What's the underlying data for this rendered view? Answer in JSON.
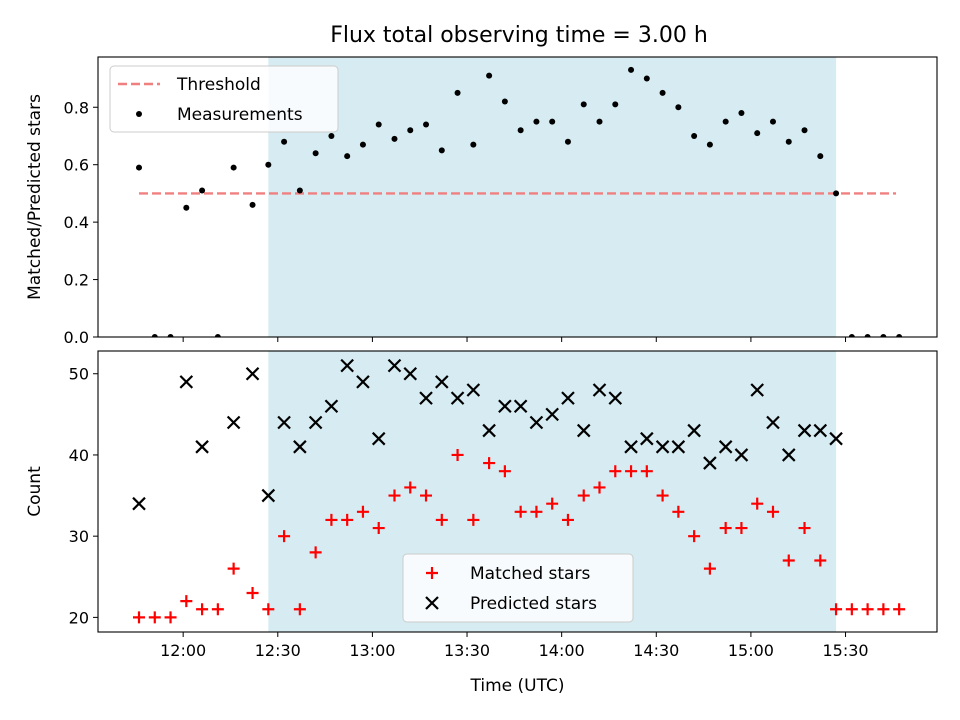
{
  "figure": {
    "title": "Flux total observing time = 3.00 h"
  },
  "colors": {
    "threshold": "#f08080",
    "measurements": "#000000",
    "matched": "#ff0000",
    "predicted": "#000000",
    "observing_window": "#add8e6"
  },
  "chart_data": [
    {
      "type": "scatter",
      "panel": "top",
      "title": "Flux total observing time = 3.00 h",
      "xlabel": "",
      "ylabel": "Matched/Predicted stars",
      "ylim": [
        0,
        0.975
      ],
      "xlim": [
        "11:33",
        "15:59"
      ],
      "yticks": [
        "0.0",
        "0.2",
        "0.4",
        "0.6",
        "0.8"
      ],
      "legend_position": "top-left",
      "shaded_region": {
        "start": "12:27",
        "end": "15:27"
      },
      "threshold": {
        "name": "Threshold",
        "value": 0.5,
        "x": [
          "11:46",
          "15:46"
        ]
      },
      "series": [
        {
          "name": "Measurements",
          "x": [
            "11:46",
            "11:51",
            "11:56",
            "12:01",
            "12:06",
            "12:11",
            "12:16",
            "12:22",
            "12:27",
            "12:32",
            "12:37",
            "12:42",
            "12:47",
            "12:52",
            "12:57",
            "13:02",
            "13:07",
            "13:12",
            "13:17",
            "13:22",
            "13:27",
            "13:32",
            "13:37",
            "13:42",
            "13:47",
            "13:52",
            "13:57",
            "14:02",
            "14:07",
            "14:12",
            "14:17",
            "14:22",
            "14:27",
            "14:32",
            "14:37",
            "14:42",
            "14:47",
            "14:52",
            "14:57",
            "15:02",
            "15:07",
            "15:12",
            "15:17",
            "15:22",
            "15:27",
            "15:32",
            "15:37",
            "15:42",
            "15:47"
          ],
          "y": [
            0.59,
            0.0,
            0.0,
            0.45,
            0.51,
            0.0,
            0.59,
            0.46,
            0.6,
            0.68,
            0.51,
            0.64,
            0.7,
            0.63,
            0.67,
            0.74,
            0.69,
            0.72,
            0.74,
            0.65,
            0.85,
            0.67,
            0.91,
            0.82,
            0.72,
            0.75,
            0.75,
            0.68,
            0.81,
            0.75,
            0.81,
            0.93,
            0.9,
            0.85,
            0.8,
            0.7,
            0.67,
            0.75,
            0.78,
            0.71,
            0.75,
            0.68,
            0.72,
            0.63,
            0.5,
            0.0,
            0.0,
            0.0,
            0.0
          ]
        }
      ]
    },
    {
      "type": "scatter",
      "panel": "bottom",
      "xlabel": "Time (UTC)",
      "ylabel": "Count",
      "ylim": [
        18.2,
        52.8
      ],
      "xlim": [
        "11:33",
        "15:59"
      ],
      "yticks": [
        "20",
        "30",
        "40",
        "50"
      ],
      "xticks": [
        "12:00",
        "12:30",
        "13:00",
        "13:30",
        "14:00",
        "14:30",
        "15:00",
        "15:30"
      ],
      "legend_position": "bottom-center",
      "shaded_region": {
        "start": "12:27",
        "end": "15:27"
      },
      "series": [
        {
          "name": "Matched stars",
          "marker": "+",
          "x": [
            "11:46",
            "11:51",
            "11:56",
            "12:01",
            "12:06",
            "12:11",
            "12:16",
            "12:22",
            "12:27",
            "12:32",
            "12:37",
            "12:42",
            "12:47",
            "12:52",
            "12:57",
            "13:02",
            "13:07",
            "13:12",
            "13:17",
            "13:22",
            "13:27",
            "13:32",
            "13:37",
            "13:42",
            "13:47",
            "13:52",
            "13:57",
            "14:02",
            "14:07",
            "14:12",
            "14:17",
            "14:22",
            "14:27",
            "14:32",
            "14:37",
            "14:42",
            "14:47",
            "14:52",
            "14:57",
            "15:02",
            "15:07",
            "15:12",
            "15:17",
            "15:22",
            "15:27",
            "15:32",
            "15:37",
            "15:42",
            "15:47"
          ],
          "y": [
            20,
            20,
            20,
            22,
            21,
            21,
            26,
            23,
            21,
            30,
            21,
            28,
            32,
            32,
            33,
            31,
            35,
            36,
            35,
            32,
            40,
            32,
            39,
            38,
            33,
            33,
            34,
            32,
            35,
            36,
            38,
            38,
            38,
            35,
            33,
            30,
            26,
            31,
            31,
            34,
            33,
            27,
            31,
            27,
            21,
            21,
            21,
            21,
            21
          ]
        },
        {
          "name": "Predicted stars",
          "marker": "x",
          "x": [
            "11:46",
            "12:01",
            "12:06",
            "12:16",
            "12:22",
            "12:27",
            "12:32",
            "12:37",
            "12:42",
            "12:47",
            "12:52",
            "12:57",
            "13:02",
            "13:07",
            "13:12",
            "13:17",
            "13:22",
            "13:27",
            "13:32",
            "13:37",
            "13:42",
            "13:47",
            "13:52",
            "13:57",
            "14:02",
            "14:07",
            "14:12",
            "14:17",
            "14:22",
            "14:27",
            "14:32",
            "14:37",
            "14:42",
            "14:47",
            "14:52",
            "14:57",
            "15:02",
            "15:07",
            "15:12",
            "15:17",
            "15:22",
            "15:27"
          ],
          "y": [
            34,
            49,
            41,
            44,
            50,
            35,
            44,
            41,
            44,
            46,
            51,
            49,
            42,
            51,
            50,
            47,
            49,
            47,
            48,
            43,
            46,
            46,
            44,
            45,
            47,
            43,
            48,
            47,
            41,
            42,
            41,
            41,
            43,
            39,
            41,
            40,
            48,
            44,
            40,
            43,
            43,
            42
          ]
        }
      ]
    }
  ]
}
